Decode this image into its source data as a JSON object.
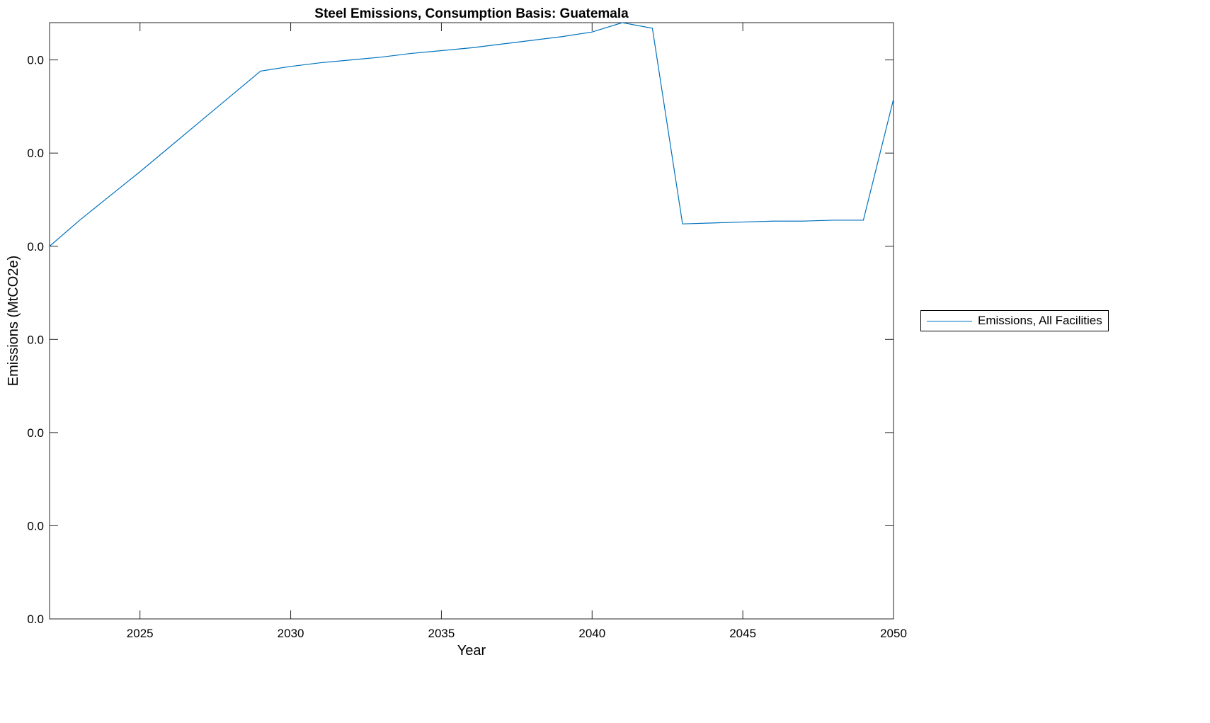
{
  "chart_data": {
    "type": "line",
    "title": "Steel Emissions, Consumption Basis: Guatemala",
    "xlabel": "Year",
    "ylabel": "Emissions (MtCO2e)",
    "xlim": [
      2022,
      2050
    ],
    "ylim": [
      0,
      0.064
    ],
    "xticks": [
      2025,
      2030,
      2035,
      2040,
      2045,
      2050
    ],
    "yticks": [
      0,
      0.01,
      0.02,
      0.03,
      0.04,
      0.05,
      0.06
    ],
    "ytick_labels": [
      "0.0",
      "0.0",
      "0.0",
      "0.0",
      "0.0",
      "0.0",
      "0.0"
    ],
    "grid": false,
    "legend_placement": "outside-right",
    "series": [
      {
        "name": "Emissions, All Facilities",
        "color": "#0072BD",
        "x": [
          2022,
          2023,
          2024,
          2025,
          2026,
          2027,
          2028,
          2029,
          2030,
          2031,
          2032,
          2033,
          2034,
          2035,
          2036,
          2037,
          2038,
          2039,
          2040,
          2041,
          2042,
          2043,
          2044,
          2045,
          2046,
          2047,
          2048,
          2049,
          2050
        ],
        "y": [
          0.04,
          0.0428,
          0.0454,
          0.048,
          0.0507,
          0.0534,
          0.0561,
          0.0588,
          0.0593,
          0.0597,
          0.06,
          0.0603,
          0.0607,
          0.061,
          0.0613,
          0.0617,
          0.0621,
          0.0625,
          0.063,
          0.064,
          0.0634,
          0.0424,
          0.0425,
          0.0426,
          0.0427,
          0.0427,
          0.0428,
          0.0428,
          0.0558
        ]
      }
    ]
  }
}
